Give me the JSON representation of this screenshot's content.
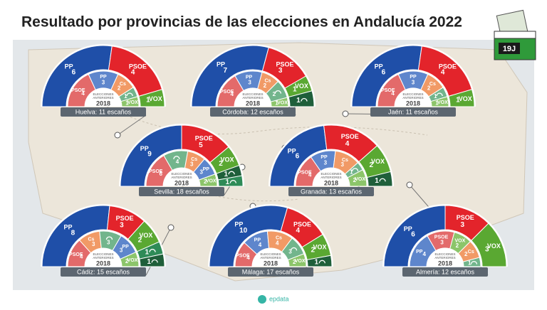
{
  "title": "Resultado por provincias de las elecciones en Andalucía 2022",
  "badge": "19J",
  "previous_label_lines": [
    "ELECCIONES",
    "ANTERIORES"
  ],
  "previous_year": "2018",
  "source": "epdata",
  "provinces": [
    {
      "label": "Huelva: 11 escaños",
      "current": [
        {
          "party": "PP",
          "seats": 6,
          "color": "#1f4fa8"
        },
        {
          "party": "PSOE",
          "seats": 4,
          "color": "#e3242b"
        },
        {
          "party": "VOX",
          "seats": 1,
          "color": "#5aa832"
        }
      ],
      "previous": [
        {
          "party": "PSOE",
          "seats": 4,
          "color": "#e36a6a"
        },
        {
          "party": "PP",
          "seats": 3,
          "color": "#5e86cc"
        },
        {
          "party": "Cs",
          "seats": 2,
          "color": "#f19a66"
        },
        {
          "seats": 1,
          "color": "#72b58c"
        },
        {
          "party": "VOX",
          "seats": 1,
          "color": "#8cc56a"
        }
      ]
    },
    {
      "label": "Córdoba: 12 escaños",
      "current": [
        {
          "party": "PP",
          "seats": 7,
          "color": "#1f4fa8"
        },
        {
          "party": "PSOE",
          "seats": 3,
          "color": "#e3242b"
        },
        {
          "party": "VOX",
          "seats": 1,
          "color": "#5aa832"
        },
        {
          "seats": 1,
          "color": "#1f5f3a"
        }
      ],
      "previous": [
        {
          "party": "PSOE",
          "seats": 4,
          "color": "#e36a6a"
        },
        {
          "party": "PP",
          "seats": 3,
          "color": "#5e86cc"
        },
        {
          "party": "Cs",
          "seats": 2,
          "color": "#f19a66"
        },
        {
          "seats": 2,
          "color": "#72b58c"
        },
        {
          "party": "VOX",
          "seats": 1,
          "color": "#8cc56a"
        }
      ]
    },
    {
      "label": "Jaén: 11 escaños",
      "current": [
        {
          "party": "PP",
          "seats": 6,
          "color": "#1f4fa8"
        },
        {
          "party": "PSOE",
          "seats": 4,
          "color": "#e3242b"
        },
        {
          "party": "VOX",
          "seats": 1,
          "color": "#5aa832"
        }
      ],
      "previous": [
        {
          "party": "PSOE",
          "seats": 4,
          "color": "#e36a6a"
        },
        {
          "party": "PP",
          "seats": 3,
          "color": "#5e86cc"
        },
        {
          "party": "Cs",
          "seats": 2,
          "color": "#f19a66"
        },
        {
          "seats": 1,
          "color": "#72b58c"
        },
        {
          "party": "VOX",
          "seats": 1,
          "color": "#8cc56a"
        }
      ]
    },
    {
      "label": "Sevilla: 18 escaños",
      "current": [
        {
          "party": "PP",
          "seats": 9,
          "color": "#1f4fa8"
        },
        {
          "party": "PSOE",
          "seats": 5,
          "color": "#e3242b"
        },
        {
          "party": "VOX",
          "seats": 2,
          "color": "#5aa832"
        },
        {
          "seats": 1,
          "color": "#1f5f3a"
        },
        {
          "seats": 1,
          "color": "#2e8b57"
        }
      ],
      "previous": [
        {
          "party": "PSOE",
          "seats": 6,
          "color": "#e36a6a"
        },
        {
          "seats": 4,
          "color": "#72b58c"
        },
        {
          "party": "Cs",
          "seats": 3,
          "color": "#f19a66"
        },
        {
          "party": "PP",
          "seats": 3,
          "color": "#5e86cc"
        },
        {
          "party": "VOX",
          "seats": 2,
          "color": "#8cc56a"
        }
      ]
    },
    {
      "label": "Granada: 13 escaños",
      "current": [
        {
          "party": "PP",
          "seats": 6,
          "color": "#1f4fa8"
        },
        {
          "party": "PSOE",
          "seats": 4,
          "color": "#e3242b"
        },
        {
          "party": "VOX",
          "seats": 2,
          "color": "#5aa832"
        },
        {
          "seats": 1,
          "color": "#1f5f3a"
        }
      ],
      "previous": [
        {
          "party": "PSOE",
          "seats": 4,
          "color": "#e36a6a"
        },
        {
          "party": "PP",
          "seats": 3,
          "color": "#5e86cc"
        },
        {
          "party": "Cs",
          "seats": 3,
          "color": "#f19a66"
        },
        {
          "seats": 1,
          "color": "#72b58c"
        },
        {
          "party": "VOX",
          "seats": 2,
          "color": "#8cc56a"
        }
      ]
    },
    {
      "label": "Cádiz: 15 escaños",
      "current": [
        {
          "party": "PP",
          "seats": 8,
          "color": "#1f4fa8"
        },
        {
          "party": "PSOE",
          "seats": 3,
          "color": "#e3242b"
        },
        {
          "party": "VOX",
          "seats": 2,
          "color": "#5aa832"
        },
        {
          "seats": 1,
          "color": "#2e8b57"
        },
        {
          "seats": 1,
          "color": "#1f5f3a"
        }
      ],
      "previous": [
        {
          "party": "PSOE",
          "seats": 4,
          "color": "#e36a6a"
        },
        {
          "party": "Cs",
          "seats": 3,
          "color": "#f19a66"
        },
        {
          "seats": 3,
          "color": "#72b58c"
        },
        {
          "party": "PP",
          "seats": 3,
          "color": "#5e86cc"
        },
        {
          "party": "VOX",
          "seats": 2,
          "color": "#8cc56a"
        }
      ]
    },
    {
      "label": "Málaga: 17 escaños",
      "current": [
        {
          "party": "PP",
          "seats": 10,
          "color": "#1f4fa8"
        },
        {
          "party": "PSOE",
          "seats": 4,
          "color": "#e3242b"
        },
        {
          "party": "VOX",
          "seats": 2,
          "color": "#5aa832"
        },
        {
          "seats": 1,
          "color": "#1f5f3a"
        }
      ],
      "previous": [
        {
          "party": "PSOE",
          "seats": 4,
          "color": "#e36a6a"
        },
        {
          "party": "PP",
          "seats": 4,
          "color": "#5e86cc"
        },
        {
          "party": "Cs",
          "seats": 4,
          "color": "#f19a66"
        },
        {
          "seats": 3,
          "color": "#72b58c"
        },
        {
          "party": "VOX",
          "seats": 2,
          "color": "#8cc56a"
        }
      ]
    },
    {
      "label": "Almería: 12 escaños",
      "current": [
        {
          "party": "PP",
          "seats": 6,
          "color": "#1f4fa8"
        },
        {
          "party": "PSOE",
          "seats": 3,
          "color": "#e3242b"
        },
        {
          "party": "VOX",
          "seats": 3,
          "color": "#5aa832"
        }
      ],
      "previous": [
        {
          "party": "PP",
          "seats": 4,
          "color": "#5e86cc"
        },
        {
          "party": "PSOE",
          "seats": 3,
          "color": "#e36a6a"
        },
        {
          "party": "VOX",
          "seats": 2,
          "color": "#8cc56a"
        },
        {
          "party": "Cs",
          "seats": 2,
          "color": "#f19a66"
        },
        {
          "seats": 1,
          "color": "#72b58c"
        }
      ]
    }
  ]
}
